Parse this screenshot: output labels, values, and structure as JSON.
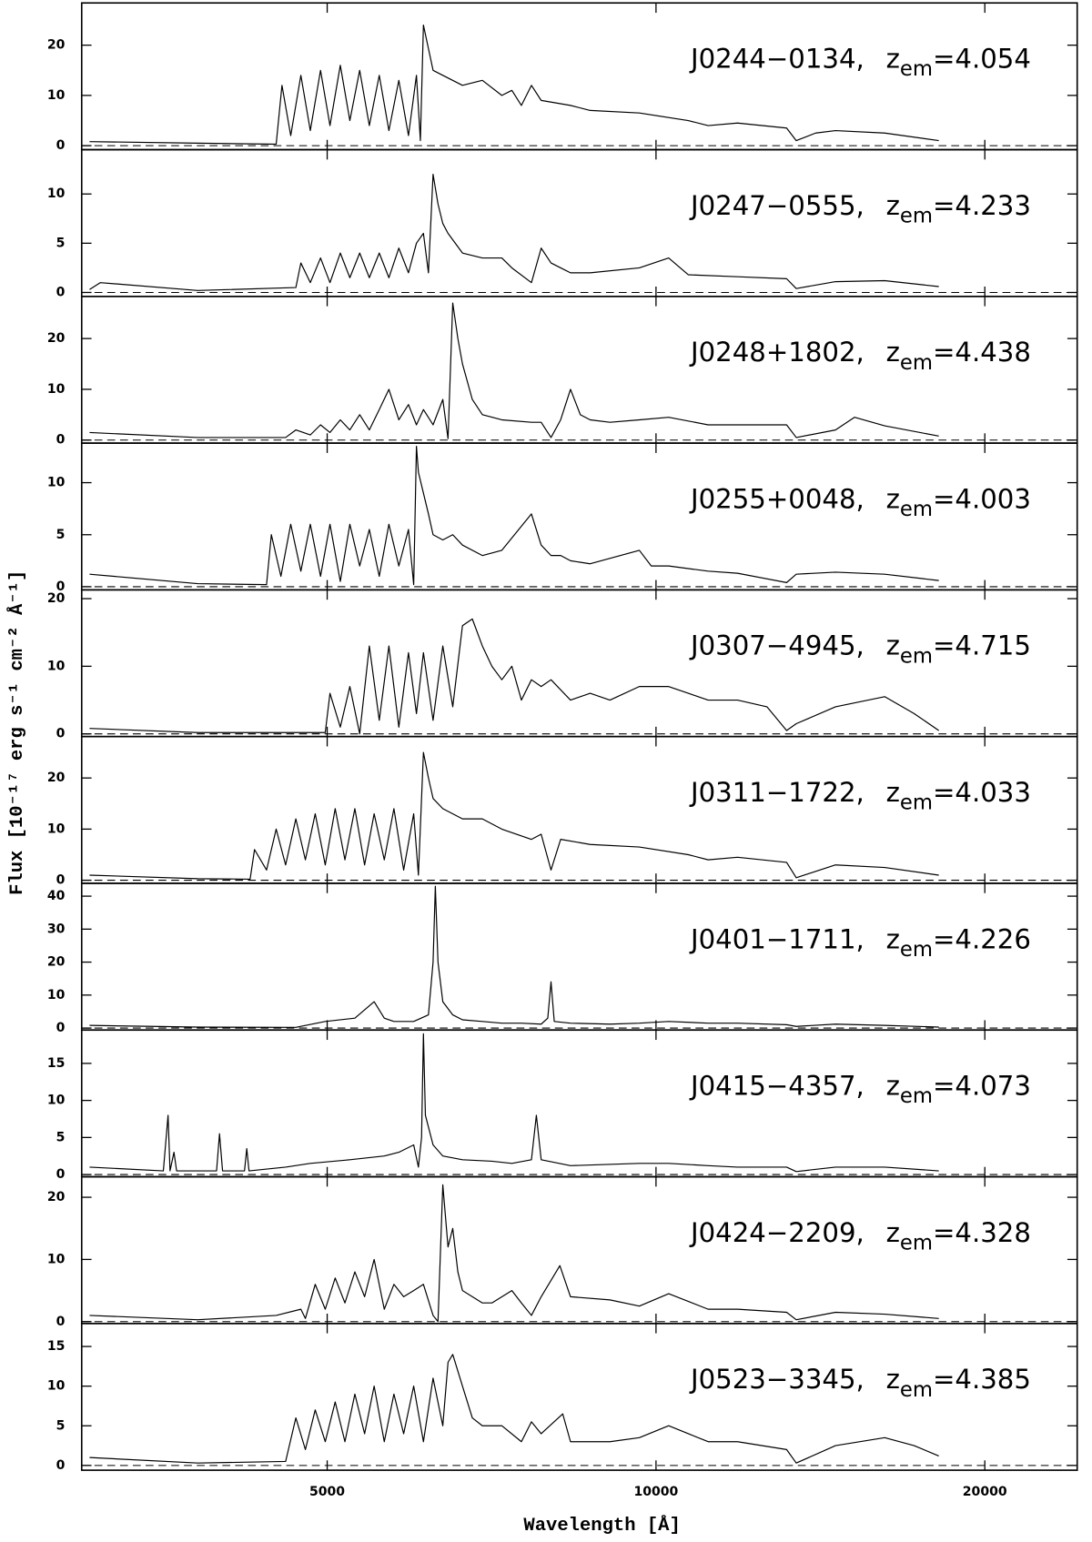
{
  "figure": {
    "xlabel": "Wavelength [Å]",
    "ylabel": "Flux [10⁻¹⁷ erg s⁻¹ cm⁻² Å⁻¹]"
  },
  "chart_data": [
    {
      "type": "line",
      "color": "#000000",
      "log_x": true,
      "zero_line": "dashed",
      "xlim": [
        2980,
        24300
      ],
      "xticks": [
        5000,
        10000,
        20000
      ],
      "ylim": [
        -0.8,
        28.4
      ],
      "yticks": [
        0,
        10,
        20
      ],
      "annotation": {
        "name": "J0244−0134,",
        "z": "z",
        "sub": "em",
        "value": "=4.054"
      },
      "x": [
        3030,
        3805,
        4490,
        4545,
        4630,
        4730,
        4825,
        4930,
        5030,
        5140,
        5245,
        5355,
        5465,
        5580,
        5695,
        5815,
        5935,
        6035,
        6085,
        6125,
        6250,
        6380,
        6650,
        6935,
        7225,
        7380,
        7530,
        7690,
        7850,
        8350,
        8705,
        9655,
        10705,
        11160,
        11875,
        13170,
        13440,
        14000,
        14600,
        16195,
        18150
      ],
      "values": [
        0.8,
        0.5,
        0.3,
        12,
        2,
        14,
        3,
        15,
        4,
        16,
        5,
        15,
        4,
        14,
        3,
        13,
        2,
        14,
        1,
        24,
        15,
        14,
        12,
        13,
        10,
        11,
        8,
        12,
        9,
        8,
        7,
        6.5,
        5,
        4,
        4.5,
        3.5,
        1,
        2.5,
        3,
        2.5,
        1
      ]
    },
    {
      "type": "line",
      "color": "#000000",
      "log_x": true,
      "zero_line": "dashed",
      "xlim": [
        2980,
        24300
      ],
      "xticks": [
        5000,
        10000,
        20000
      ],
      "ylim": [
        -0.4,
        14.5
      ],
      "yticks": [
        0,
        5,
        10
      ],
      "annotation": {
        "name": "J0247−0555,",
        "z": "z",
        "sub": "em",
        "value": "=4.233"
      },
      "x": [
        3030,
        3100,
        3805,
        4680,
        4730,
        4825,
        4930,
        5030,
        5140,
        5245,
        5355,
        5465,
        5580,
        5695,
        5815,
        5935,
        6035,
        6125,
        6190,
        6250,
        6315,
        6380,
        6450,
        6650,
        6935,
        7225,
        7380,
        7690,
        7850,
        8015,
        8180,
        8350,
        8705,
        9655,
        10270,
        10705,
        11875,
        13170,
        13440,
        14600,
        16195,
        18150
      ],
      "values": [
        0.3,
        1,
        0.2,
        0.5,
        3,
        1,
        3.5,
        1,
        4,
        1.5,
        4,
        1.5,
        4,
        1.5,
        4.5,
        2,
        5,
        6,
        2,
        12,
        9,
        7,
        6,
        4,
        3.5,
        3.5,
        2.5,
        1,
        4.5,
        3,
        2.5,
        2,
        2,
        2.5,
        3.5,
        1.8,
        1.6,
        1.4,
        0.4,
        1.1,
        1.2,
        0.6
      ]
    },
    {
      "type": "line",
      "color": "#000000",
      "log_x": true,
      "zero_line": "dashed",
      "xlim": [
        2980,
        24300
      ],
      "xticks": [
        5000,
        10000,
        20000
      ],
      "ylim": [
        -0.6,
        28.3
      ],
      "yticks": [
        0,
        10,
        20
      ],
      "annotation": {
        "name": "J0248+1802,",
        "z": "z",
        "sub": "em",
        "value": "=4.438"
      },
      "x": [
        3030,
        3805,
        4580,
        4680,
        4825,
        4930,
        5030,
        5140,
        5245,
        5355,
        5465,
        5580,
        5695,
        5815,
        5935,
        6035,
        6125,
        6250,
        6380,
        6450,
        6515,
        6585,
        6650,
        6790,
        6935,
        7225,
        7690,
        7850,
        8015,
        8180,
        8350,
        8525,
        8705,
        9075,
        9655,
        10270,
        11160,
        11875,
        13170,
        13440,
        14600,
        15200,
        16195,
        18150
      ],
      "values": [
        1.5,
        0.5,
        0.5,
        2,
        1,
        3,
        1.5,
        4,
        2,
        5,
        2,
        6,
        10,
        4,
        7,
        3,
        6,
        3,
        8,
        0.3,
        27,
        20,
        15,
        8,
        5,
        4,
        3.5,
        3.5,
        0.5,
        4,
        10,
        5,
        4,
        3.5,
        4,
        4.5,
        3,
        3,
        3,
        0.5,
        2,
        4.5,
        2.8,
        0.8
      ]
    },
    {
      "type": "line",
      "color": "#000000",
      "log_x": true,
      "zero_line": "dashed",
      "xlim": [
        2980,
        24300
      ],
      "xticks": [
        5000,
        10000,
        20000
      ],
      "ylim": [
        -0.3,
        13.8
      ],
      "yticks": [
        0,
        5,
        10
      ],
      "annotation": {
        "name": "J0255+0048,",
        "z": "z",
        "sub": "em",
        "value": "=4.003"
      },
      "x": [
        3030,
        3805,
        4400,
        4445,
        4535,
        4630,
        4730,
        4825,
        4930,
        5030,
        5140,
        5245,
        5355,
        5465,
        5580,
        5695,
        5815,
        5935,
        6000,
        6035,
        6060,
        6190,
        6250,
        6380,
        6515,
        6650,
        6935,
        7225,
        7690,
        7850,
        8015,
        8180,
        8350,
        8705,
        9655,
        9900,
        10270,
        11160,
        11875,
        13170,
        13440,
        14600,
        16195,
        18150
      ],
      "values": [
        1.2,
        0.3,
        0.2,
        5,
        1,
        6,
        1.5,
        6,
        1,
        6,
        0.5,
        6,
        2,
        5.5,
        1,
        6,
        2,
        5.5,
        0.2,
        13.5,
        11,
        7,
        5,
        4.5,
        5,
        4,
        3,
        3.5,
        7,
        4,
        3,
        3,
        2.5,
        2.2,
        3.5,
        2,
        2,
        1.5,
        1.3,
        0.4,
        1.2,
        1.4,
        1.2,
        0.6
      ]
    },
    {
      "type": "line",
      "color": "#000000",
      "log_x": true,
      "zero_line": "dashed",
      "xlim": [
        2980,
        24300
      ],
      "xticks": [
        5000,
        10000,
        20000
      ],
      "ylim": [
        -0.4,
        21.3
      ],
      "yticks": [
        0,
        10,
        20
      ],
      "annotation": {
        "name": "J0307−4945,",
        "z": "z",
        "sub": "em",
        "value": "=4.715"
      },
      "x": [
        3030,
        3805,
        4980,
        5030,
        5140,
        5245,
        5355,
        5465,
        5580,
        5695,
        5815,
        5935,
        6035,
        6125,
        6250,
        6380,
        6515,
        6650,
        6790,
        6935,
        7075,
        7225,
        7380,
        7530,
        7690,
        7850,
        8015,
        8350,
        8705,
        9075,
        9655,
        10270,
        10705,
        11160,
        11875,
        12635,
        13170,
        13440,
        14600,
        16195,
        17230,
        18150
      ],
      "values": [
        0.8,
        0.2,
        0.2,
        6,
        1,
        7,
        0,
        13,
        2,
        13,
        1,
        12,
        3,
        12,
        2,
        13,
        4,
        16,
        17,
        13,
        10,
        8,
        10,
        5,
        8,
        7,
        8,
        5,
        6,
        5,
        7,
        7,
        6,
        5,
        5,
        4,
        0.5,
        1.5,
        4,
        5.5,
        3,
        0.5
      ]
    },
    {
      "type": "line",
      "color": "#000000",
      "log_x": true,
      "zero_line": "dashed",
      "xlim": [
        2980,
        24300
      ],
      "xticks": [
        5000,
        10000,
        20000
      ],
      "ylim": [
        -0.6,
        28.1
      ],
      "yticks": [
        0,
        10,
        20
      ],
      "annotation": {
        "name": "J0311−1722,",
        "z": "z",
        "sub": "em",
        "value": "=4.033"
      },
      "x": [
        3030,
        3805,
        4250,
        4290,
        4400,
        4490,
        4580,
        4680,
        4775,
        4875,
        4980,
        5085,
        5190,
        5300,
        5410,
        5520,
        5640,
        5755,
        5875,
        6000,
        6060,
        6125,
        6190,
        6250,
        6380,
        6650,
        6935,
        7225,
        7690,
        7850,
        8015,
        8180,
        8705,
        9655,
        10705,
        11160,
        11875,
        13170,
        13440,
        14600,
        16195,
        18150
      ],
      "values": [
        1,
        0.3,
        0.2,
        6,
        2,
        10,
        3,
        12,
        4,
        13,
        3,
        14,
        4,
        14,
        3,
        13,
        4,
        14,
        2,
        13,
        1,
        25,
        20,
        16,
        14,
        12,
        12,
        10,
        8,
        9,
        2,
        8,
        7,
        6.5,
        5,
        4,
        4.5,
        3.5,
        0.5,
        3,
        2.5,
        1
      ]
    },
    {
      "type": "line",
      "color": "#000000",
      "log_x": true,
      "zero_line": "dashed",
      "xlim": [
        2980,
        24300
      ],
      "xticks": [
        5000,
        10000,
        20000
      ],
      "ylim": [
        -0.6,
        43.9
      ],
      "yticks": [
        0,
        10,
        20,
        30,
        40
      ],
      "annotation": {
        "name": "J0401−1711,",
        "z": "z",
        "sub": "em",
        "value": "=4.226"
      },
      "x": [
        3030,
        3805,
        4680,
        4980,
        5300,
        5520,
        5640,
        5755,
        6000,
        6190,
        6250,
        6280,
        6315,
        6380,
        6515,
        6650,
        6935,
        7225,
        7530,
        7850,
        7960,
        8015,
        8070,
        8350,
        9075,
        9655,
        10270,
        11160,
        11875,
        13170,
        13440,
        14600,
        16195,
        18150
      ],
      "values": [
        0.8,
        0.3,
        0.2,
        2,
        3,
        8,
        3,
        2,
        2,
        4,
        20,
        43,
        20,
        8,
        4,
        2.5,
        2,
        1.5,
        1.5,
        1.2,
        3,
        14,
        2,
        1.5,
        1.2,
        1.5,
        2,
        1.5,
        1.5,
        1,
        0.5,
        1.2,
        0.8,
        0.3
      ]
    },
    {
      "type": "line",
      "color": "#000000",
      "log_x": true,
      "zero_line": "dashed",
      "xlim": [
        2980,
        24300
      ],
      "xticks": [
        5000,
        10000,
        20000
      ],
      "ylim": [
        -0.3,
        19.5
      ],
      "yticks": [
        0,
        5,
        10,
        15
      ],
      "annotation": {
        "name": "J0415−4357,",
        "z": "z",
        "sub": "em",
        "value": "=4.073"
      },
      "x": [
        3030,
        3540,
        3575,
        3590,
        3620,
        3640,
        3960,
        3985,
        4010,
        4200,
        4220,
        4240,
        4580,
        4825,
        5245,
        5640,
        5815,
        6000,
        6060,
        6100,
        6125,
        6150,
        6250,
        6380,
        6650,
        7075,
        7380,
        7690,
        7770,
        7850,
        8350,
        9655,
        10270,
        11160,
        11875,
        13170,
        13440,
        14600,
        16195,
        18150
      ],
      "values": [
        1,
        0.5,
        8,
        0.5,
        3,
        0.5,
        0.5,
        5.5,
        0.5,
        0.5,
        3.5,
        0.5,
        1,
        1.5,
        2,
        2.5,
        3,
        4,
        1,
        5,
        19,
        8,
        4,
        2.5,
        2,
        1.8,
        1.5,
        2,
        8,
        2,
        1.2,
        1.5,
        1.5,
        1.2,
        1,
        1,
        0.4,
        1,
        1,
        0.5
      ]
    },
    {
      "type": "line",
      "color": "#000000",
      "log_x": true,
      "zero_line": "dashed",
      "xlim": [
        2980,
        24300
      ],
      "xticks": [
        5000,
        10000,
        20000
      ],
      "ylim": [
        -0.3,
        23.3
      ],
      "yticks": [
        0,
        10,
        20
      ],
      "annotation": {
        "name": "J0424−2209,",
        "z": "z",
        "sub": "em",
        "value": "=4.328"
      },
      "x": [
        3030,
        3805,
        4490,
        4730,
        4775,
        4875,
        4980,
        5085,
        5190,
        5300,
        5410,
        5520,
        5640,
        5755,
        5875,
        6000,
        6125,
        6250,
        6315,
        6380,
        6450,
        6515,
        6585,
        6650,
        6935,
        7075,
        7380,
        7530,
        7690,
        7850,
        8165,
        8350,
        9075,
        9655,
        10270,
        11160,
        11875,
        13170,
        13440,
        14600,
        16195,
        18150
      ],
      "values": [
        1,
        0.3,
        1,
        2,
        0.5,
        6,
        2,
        7,
        3,
        8,
        4,
        10,
        2,
        6,
        4,
        5,
        6,
        1,
        0,
        22,
        12,
        15,
        8,
        5,
        3,
        3,
        5,
        3,
        1,
        4,
        9,
        4,
        3.5,
        2.5,
        4.5,
        2,
        2,
        1.5,
        0.3,
        1.5,
        1.2,
        0.5
      ]
    },
    {
      "type": "line",
      "color": "#000000",
      "log_x": true,
      "zero_line": "dashed",
      "xlim": [
        2980,
        24300
      ],
      "xticks": [
        5000,
        10000,
        20000
      ],
      "ylim": [
        -0.6,
        17.9
      ],
      "yticks": [
        0,
        5,
        10,
        15
      ],
      "annotation": {
        "name": "J0523−3345,",
        "z": "z",
        "sub": "em",
        "value": "=4.385"
      },
      "x": [
        3030,
        3805,
        4580,
        4680,
        4775,
        4875,
        4980,
        5085,
        5190,
        5300,
        5410,
        5520,
        5640,
        5755,
        5875,
        6000,
        6125,
        6250,
        6380,
        6450,
        6515,
        6650,
        6790,
        6935,
        7225,
        7530,
        7690,
        7850,
        8215,
        8350,
        9075,
        9655,
        10270,
        10705,
        11160,
        11875,
        13170,
        13440,
        14600,
        16195,
        17230,
        18150
      ],
      "values": [
        1,
        0.3,
        0.5,
        6,
        2,
        7,
        3,
        8,
        3,
        9,
        4,
        10,
        3,
        9,
        4,
        10,
        3,
        11,
        5,
        13,
        14,
        10,
        6,
        5,
        5,
        3,
        5.5,
        4,
        6.5,
        3,
        3,
        3.5,
        5,
        4,
        3,
        3,
        2,
        0.3,
        2.5,
        3.5,
        2.5,
        1.2
      ]
    }
  ]
}
